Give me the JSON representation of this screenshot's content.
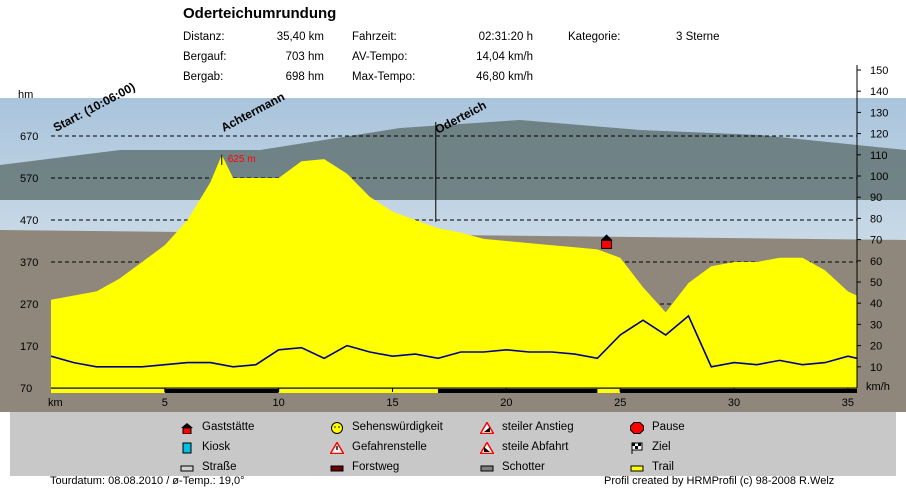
{
  "title": "Oderteichumrundung",
  "stats": [
    {
      "label": "Distanz:",
      "value": "35,40 km"
    },
    {
      "label": "Bergauf:",
      "value": "703 hm"
    },
    {
      "label": "Bergab:",
      "value": "698 hm"
    },
    {
      "label": "Fahrzeit:",
      "value": "02:31:20 h"
    },
    {
      "label": "AV-Tempo:",
      "value": "14,04 km/h"
    },
    {
      "label": "Max-Tempo:",
      "value": "46,80 km/h"
    },
    {
      "label": "Kategorie:",
      "value": "3 Sterne"
    }
  ],
  "legend": [
    {
      "label": "Gaststätte",
      "icon": "house-icon"
    },
    {
      "label": "Kiosk",
      "icon": "kiosk-icon"
    },
    {
      "label": "Straße",
      "icon": "road-swatch"
    },
    {
      "label": "Sehenswürdigkeit",
      "icon": "smiley-icon"
    },
    {
      "label": "Gefahrenstelle",
      "icon": "warning-icon"
    },
    {
      "label": "Forstweg",
      "icon": "forest-road-swatch"
    },
    {
      "label": "steiler Anstieg",
      "icon": "steep-climb-icon"
    },
    {
      "label": "steile Abfahrt",
      "icon": "steep-descent-icon"
    },
    {
      "label": "Schotter",
      "icon": "gravel-swatch"
    },
    {
      "label": "Pause",
      "icon": "stop-icon"
    },
    {
      "label": "Ziel",
      "icon": "finish-flag-icon"
    },
    {
      "label": "Trail",
      "icon": "trail-swatch"
    }
  ],
  "footer_left": "Tourdatum: 08.08.2010 / ø-Temp.: 19,0°",
  "footer_right": "Profil created by HRMProfil (c) 98-2008 R.Welz",
  "colors": {
    "elevation_fill": "#ffff00",
    "speed_line": "#00008b",
    "marker": "#ff0000",
    "legend_bg": "#c8c8c8"
  },
  "chart_data": {
    "type": "area",
    "xlabel": "km",
    "ylabel": "hm",
    "y2label": "km/h",
    "xlim": [
      0,
      35.4
    ],
    "ylim": [
      70,
      670
    ],
    "y2lim": [
      0,
      150
    ],
    "x_ticks": [
      "5",
      "10",
      "15",
      "20",
      "25",
      "30",
      "35"
    ],
    "y_ticks": [
      "70",
      "170",
      "270",
      "370",
      "470",
      "570",
      "670"
    ],
    "y2_ticks": [
      "10",
      "20",
      "30",
      "40",
      "50",
      "60",
      "70",
      "80",
      "90",
      "100",
      "110",
      "120",
      "130",
      "140",
      "150"
    ],
    "series": [
      {
        "type": "area",
        "x": [
          0,
          2,
          3,
          4,
          5,
          6,
          7,
          7.5,
          8,
          9,
          10,
          11,
          12,
          13,
          14,
          15,
          16,
          17,
          18,
          19,
          20,
          21,
          22,
          23,
          24,
          25,
          26,
          27,
          28,
          29,
          30,
          31,
          32,
          33,
          34,
          35,
          35.4
        ],
        "y": [
          280,
          300,
          330,
          370,
          410,
          470,
          560,
          625,
          570,
          570,
          570,
          610,
          615,
          580,
          525,
          490,
          470,
          450,
          440,
          425,
          420,
          415,
          410,
          405,
          400,
          380,
          310,
          250,
          320,
          360,
          370,
          370,
          380,
          380,
          350,
          300,
          290
        ]
      },
      {
        "type": "line",
        "x": [
          0,
          1,
          2,
          3,
          4,
          5,
          6,
          7,
          8,
          9,
          10,
          11,
          12,
          13,
          14,
          15,
          16,
          17,
          18,
          19,
          20,
          21,
          22,
          23,
          24,
          25,
          26,
          27,
          28,
          29,
          30,
          31,
          32,
          33,
          34,
          35,
          35.4
        ],
        "y": [
          15,
          12,
          10,
          10,
          10,
          11,
          12,
          12,
          10,
          11,
          18,
          19,
          14,
          20,
          17,
          15,
          16,
          14,
          17,
          17,
          18,
          17,
          17,
          16,
          14,
          25,
          32,
          25,
          34,
          10,
          12,
          11,
          13,
          11,
          12,
          15,
          14
        ]
      }
    ],
    "annotations": [
      {
        "x": 0,
        "label": "Start: (10:06:00)"
      },
      {
        "x": 7.5,
        "label": "Achtermann",
        "value": "625 m"
      },
      {
        "x": 16.9,
        "label": "Oderteich"
      }
    ],
    "points_of_interest": [
      {
        "x": 24.4,
        "type": "Gaststätte"
      }
    ]
  }
}
